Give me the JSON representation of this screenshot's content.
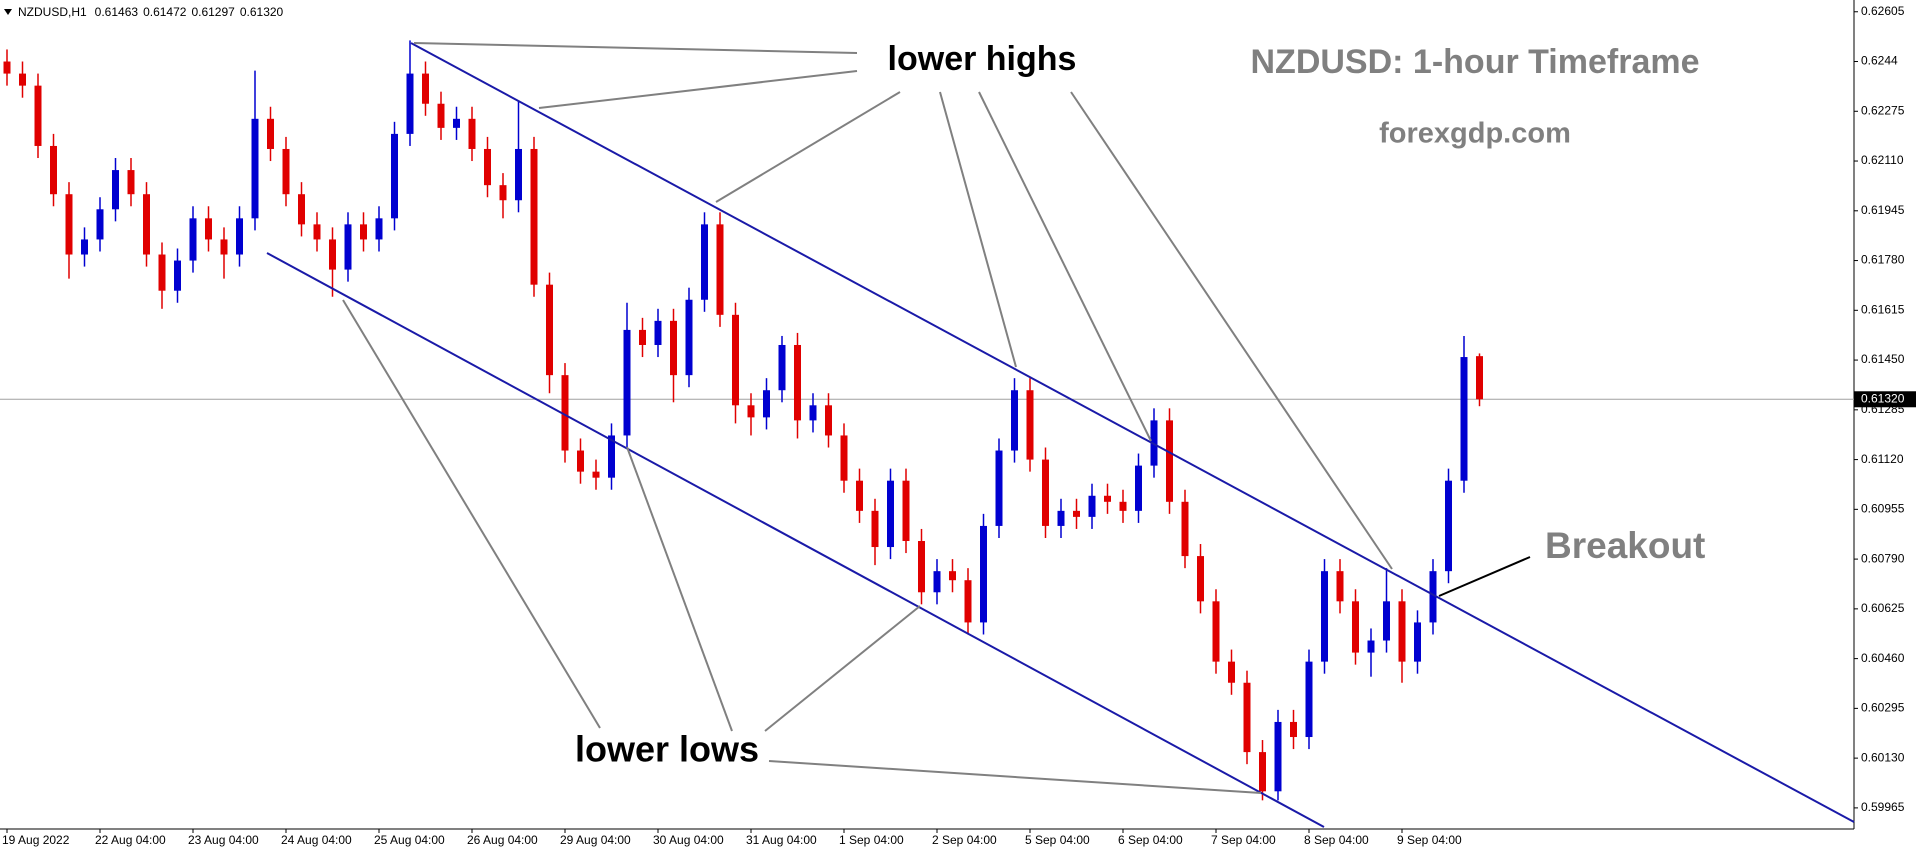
{
  "chart_data": {
    "type": "candlestick",
    "header": "NZDUSD,H1",
    "header_values": [
      "0.61463",
      "0.61472",
      "0.61297",
      "0.61320"
    ],
    "title": "NZDUSD: 1-hour Timeframe",
    "subtitle": "forexgdp.com",
    "annotations": [
      "lower highs",
      "lower lows",
      "Breakout"
    ],
    "up_color": "#0000d0",
    "down_color": "#e00000",
    "categories": [
      "19 Aug 2022",
      null,
      null,
      null,
      null,
      null,
      "22 Aug 04:00",
      null,
      null,
      null,
      null,
      null,
      "23 Aug 04:00",
      null,
      null,
      null,
      null,
      null,
      "24 Aug 04:00",
      null,
      null,
      null,
      null,
      null,
      "25 Aug 04:00",
      null,
      null,
      null,
      null,
      null,
      "26 Aug 04:00",
      null,
      null,
      null,
      null,
      null,
      "29 Aug 04:00",
      null,
      null,
      null,
      null,
      null,
      "30 Aug 04:00",
      null,
      null,
      null,
      null,
      null,
      "31 Aug 04:00",
      null,
      null,
      null,
      null,
      null,
      "1 Sep 04:00",
      null,
      null,
      null,
      null,
      null,
      "2 Sep 04:00",
      null,
      null,
      null,
      null,
      null,
      "5 Sep 04:00",
      null,
      null,
      null,
      null,
      null,
      "6 Sep 04:00",
      null,
      null,
      null,
      null,
      null,
      "7 Sep 04:00",
      null,
      null,
      null,
      null,
      null,
      "8 Sep 04:00",
      null,
      null,
      null,
      null,
      null,
      "9 Sep 04:00",
      null,
      null,
      null,
      null,
      null
    ],
    "open": [
      0.6244,
      0.624,
      0.6236,
      0.6216,
      0.62,
      0.618,
      0.6185,
      0.6195,
      0.6208,
      0.62,
      0.618,
      0.6168,
      0.6178,
      0.6192,
      0.6185,
      0.618,
      0.6192,
      0.6225,
      0.6215,
      0.62,
      0.619,
      0.6185,
      0.6175,
      0.619,
      0.6185,
      0.6192,
      0.622,
      0.624,
      0.623,
      0.6222,
      0.6225,
      0.6215,
      0.6203,
      0.6198,
      0.6215,
      0.617,
      0.614,
      0.6115,
      0.6108,
      0.6106,
      0.612,
      0.6155,
      0.615,
      0.6158,
      0.614,
      0.6165,
      0.619,
      0.616,
      0.613,
      0.6126,
      0.6135,
      0.615,
      0.6125,
      0.613,
      0.612,
      0.6105,
      0.6095,
      0.6083,
      0.6105,
      0.6085,
      0.6068,
      0.6075,
      0.6072,
      0.6058,
      0.609,
      0.6115,
      0.6135,
      0.6112,
      0.609,
      0.6095,
      0.6093,
      0.61,
      0.6098,
      0.6095,
      0.611,
      0.6125,
      0.6098,
      0.608,
      0.6065,
      0.6045,
      0.6038,
      0.6015,
      0.6002,
      0.6025,
      0.602,
      0.6045,
      0.6075,
      0.6065,
      0.6048,
      0.6052,
      0.6065,
      0.6045,
      0.6058,
      0.6075,
      0.6105,
      0.61463
    ],
    "high": [
      0.6248,
      0.6244,
      0.624,
      0.622,
      0.6204,
      0.6189,
      0.6199,
      0.6212,
      0.6212,
      0.6204,
      0.6184,
      0.6182,
      0.6196,
      0.6196,
      0.6189,
      0.6196,
      0.6241,
      0.6229,
      0.6219,
      0.6204,
      0.6194,
      0.6189,
      0.6194,
      0.6194,
      0.6196,
      0.6224,
      0.6251,
      0.6244,
      0.6234,
      0.6229,
      0.6229,
      0.6219,
      0.6207,
      0.6231,
      0.6219,
      0.6174,
      0.6144,
      0.6119,
      0.6112,
      0.6124,
      0.6164,
      0.6159,
      0.6162,
      0.6162,
      0.6169,
      0.6194,
      0.6194,
      0.6164,
      0.6134,
      0.6139,
      0.6153,
      0.6154,
      0.6134,
      0.6134,
      0.6124,
      0.6109,
      0.6099,
      0.6109,
      0.6109,
      0.6089,
      0.6079,
      0.6079,
      0.6076,
      0.6094,
      0.6119,
      0.6139,
      0.6139,
      0.6116,
      0.6099,
      0.6099,
      0.6104,
      0.6104,
      0.6102,
      0.6114,
      0.6129,
      0.6129,
      0.6102,
      0.6084,
      0.6069,
      0.6049,
      0.6042,
      0.6019,
      0.6029,
      0.6029,
      0.6049,
      0.6079,
      0.6079,
      0.6069,
      0.6056,
      0.6076,
      0.6069,
      0.6062,
      0.6079,
      0.6109,
      0.6153,
      0.61472
    ],
    "low": [
      0.6236,
      0.6232,
      0.6212,
      0.6196,
      0.6172,
      0.6176,
      0.6181,
      0.6191,
      0.6196,
      0.6176,
      0.6162,
      0.6164,
      0.6174,
      0.6181,
      0.6172,
      0.6176,
      0.6188,
      0.6211,
      0.6196,
      0.6186,
      0.6181,
      0.6166,
      0.6171,
      0.6181,
      0.6181,
      0.6188,
      0.6216,
      0.6226,
      0.6218,
      0.6218,
      0.6211,
      0.6199,
      0.6192,
      0.6194,
      0.6166,
      0.6134,
      0.6111,
      0.6104,
      0.6102,
      0.6102,
      0.6116,
      0.6146,
      0.6146,
      0.6131,
      0.6136,
      0.6161,
      0.6156,
      0.6124,
      0.612,
      0.6122,
      0.6131,
      0.6119,
      0.6121,
      0.6116,
      0.6101,
      0.6091,
      0.6077,
      0.6079,
      0.6081,
      0.6064,
      0.6064,
      0.6068,
      0.6054,
      0.6054,
      0.6086,
      0.6111,
      0.6108,
      0.6086,
      0.6086,
      0.6089,
      0.6089,
      0.6094,
      0.6091,
      0.6091,
      0.6106,
      0.6094,
      0.6076,
      0.6061,
      0.6041,
      0.6034,
      0.6011,
      0.5999,
      0.5999,
      0.6016,
      0.6016,
      0.6041,
      0.6061,
      0.6044,
      0.604,
      0.6048,
      0.6038,
      0.6041,
      0.6054,
      0.6071,
      0.6101,
      0.61297
    ],
    "close": [
      0.624,
      0.6236,
      0.6216,
      0.62,
      0.618,
      0.6185,
      0.6195,
      0.6208,
      0.62,
      0.618,
      0.6168,
      0.6178,
      0.6192,
      0.6185,
      0.618,
      0.6192,
      0.6225,
      0.6215,
      0.62,
      0.619,
      0.6185,
      0.6175,
      0.619,
      0.6185,
      0.6192,
      0.622,
      0.624,
      0.623,
      0.6222,
      0.6225,
      0.6215,
      0.6203,
      0.6198,
      0.6215,
      0.617,
      0.614,
      0.6115,
      0.6108,
      0.6106,
      0.612,
      0.6155,
      0.615,
      0.6158,
      0.614,
      0.6165,
      0.619,
      0.616,
      0.613,
      0.6126,
      0.6135,
      0.615,
      0.6125,
      0.613,
      0.612,
      0.6105,
      0.6095,
      0.6083,
      0.6105,
      0.6085,
      0.6068,
      0.6075,
      0.6072,
      0.6058,
      0.609,
      0.6115,
      0.6135,
      0.6112,
      0.609,
      0.6095,
      0.6093,
      0.61,
      0.6098,
      0.6095,
      0.611,
      0.6125,
      0.6098,
      0.608,
      0.6065,
      0.6045,
      0.6038,
      0.6015,
      0.6002,
      0.6025,
      0.602,
      0.6045,
      0.6075,
      0.6065,
      0.6048,
      0.6052,
      0.6065,
      0.6045,
      0.6058,
      0.6075,
      0.6105,
      0.6146,
      0.6132
    ],
    "current_price": {
      "value": 0.6132,
      "label": "0.61320"
    },
    "ylim": [
      0.59895,
      0.62644
    ],
    "yticks": [
      0.62605,
      0.6244,
      0.62275,
      {
        "value": 0.6211,
        "label": "0.62110"
      },
      0.61945,
      {
        "value": 0.6178,
        "label": "0.61780"
      },
      0.61615,
      {
        "value": 0.6145,
        "label": "0.61450"
      },
      0.61285,
      {
        "value": 0.6112,
        "label": "0.61120"
      },
      0.60955,
      {
        "value": 0.6079,
        "label": "0.60790"
      },
      0.60625,
      {
        "value": 0.6046,
        "label": "0.60460"
      },
      0.60295,
      {
        "value": 0.6013,
        "label": "0.60130"
      },
      0.59965
    ]
  }
}
